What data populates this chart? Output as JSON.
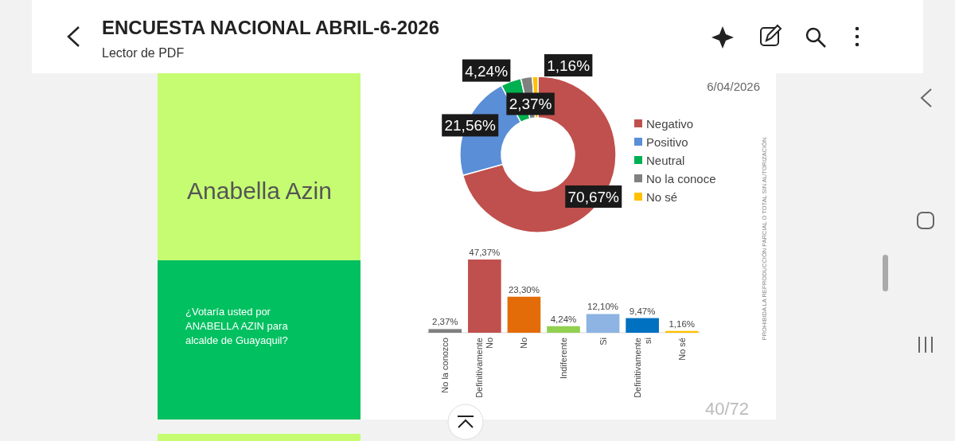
{
  "chart_data": [
    {
      "type": "donut",
      "title": "ENCUESTA NACIONAL ABRIL-6-2026",
      "subtitle": "Anabella Azin",
      "categories": [
        "Negativo",
        "Positivo",
        "Neutral",
        "No la conoce",
        "No sé"
      ],
      "values": [
        70.67,
        21.56,
        4.24,
        2.37,
        1.16
      ],
      "colors": [
        "#c0504d",
        "#5a8ed6",
        "#00b050",
        "#808080",
        "#ffc000"
      ],
      "value_labels": [
        "70,67%",
        "21,56%",
        "4,24%",
        "2,37%",
        "1,16%"
      ],
      "legend": "right",
      "annotations": [
        "Lector de PDF",
        "6/04/2026",
        "PROHIBIDA LA REPRODUCCIÓN PARCIAL O TOTAL SIN AUTORIZACIÓN"
      ]
    },
    {
      "type": "bar",
      "categories": [
        "No la conozco",
        "Definitivamente No",
        "No",
        "Indiferente",
        "Si",
        "Definitivamente si",
        "No sé"
      ],
      "values": [
        2.37,
        47.37,
        23.3,
        4.24,
        12.1,
        9.47,
        1.16
      ],
      "colors": [
        "#7f7f7f",
        "#c0504d",
        "#e36c09",
        "#92d050",
        "#8db4e2",
        "#0070c0",
        "#ffc000"
      ],
      "value_labels": [
        "2,37%",
        "47,37%",
        "23,30%",
        "4,24%",
        "12,10%",
        "9,47%",
        "1,16%"
      ],
      "annotations": [
        "40/72",
        "¿Votaría usted por ANABELLA AZIN para alcalde de Guayaquil?"
      ]
    }
  ]
}
